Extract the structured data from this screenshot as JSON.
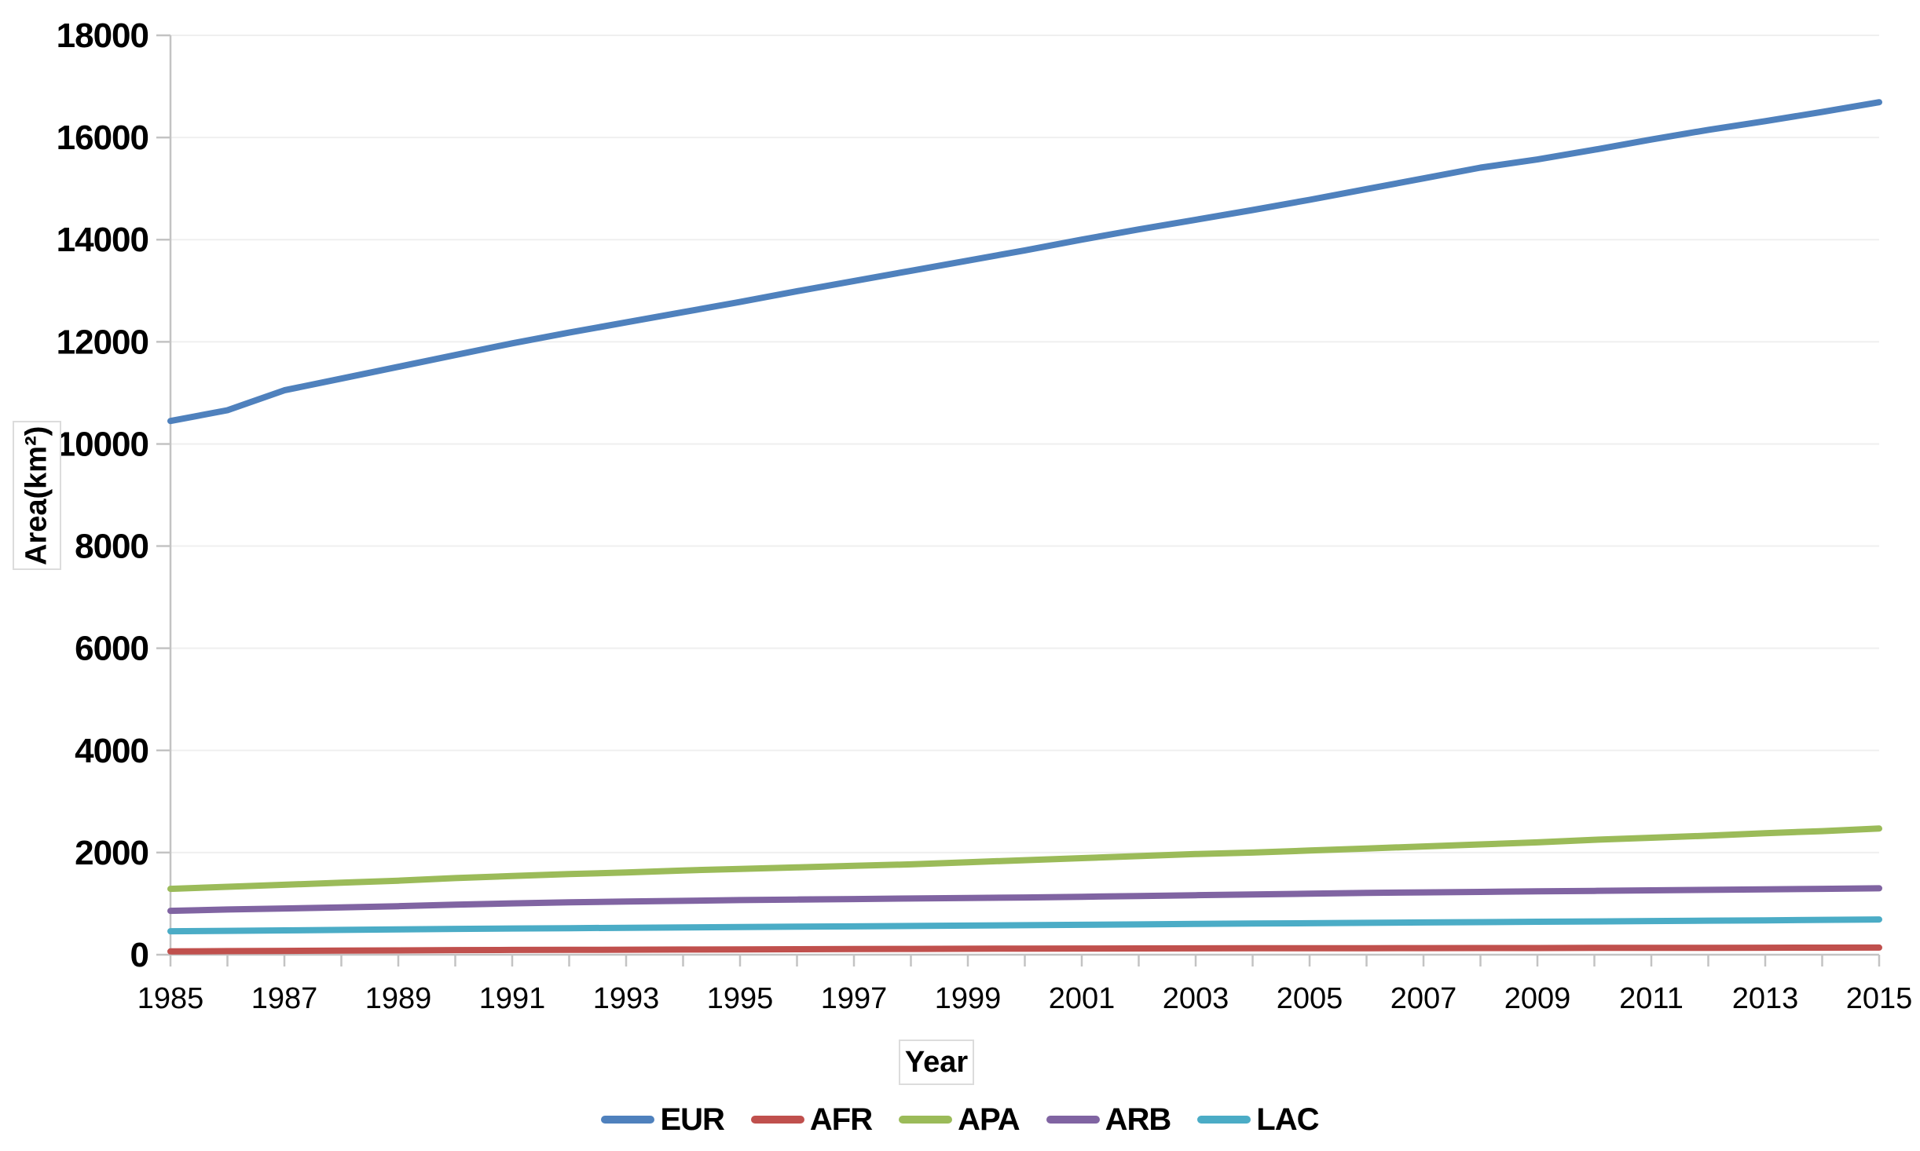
{
  "chart_data": {
    "type": "line",
    "title": "",
    "xlabel": "Year",
    "ylabel": "Area(km²)",
    "xlim": [
      1985,
      2015
    ],
    "ylim": [
      0,
      18000
    ],
    "y_tick_interval": 2000,
    "y_ticks": [
      0,
      2000,
      4000,
      6000,
      8000,
      10000,
      12000,
      14000,
      16000,
      18000
    ],
    "x_tick_interval_labels": 2,
    "x_tick_labels": [
      1985,
      1987,
      1989,
      1991,
      1993,
      1995,
      1997,
      1999,
      2001,
      2003,
      2005,
      2007,
      2009,
      2011,
      2013,
      2015
    ],
    "x": [
      1985,
      1986,
      1987,
      1988,
      1989,
      1990,
      1991,
      1992,
      1993,
      1994,
      1995,
      1996,
      1997,
      1998,
      1999,
      2000,
      2001,
      2002,
      2003,
      2004,
      2005,
      2006,
      2007,
      2008,
      2009,
      2010,
      2011,
      2012,
      2013,
      2014,
      2015
    ],
    "grid": true,
    "legend_position": "bottom",
    "colors": {
      "axis": "#c3c3c3",
      "grid": "#efefef",
      "tick": "#c3c3c3",
      "text": "#000000",
      "box_border": "#dcdcdc"
    },
    "series": [
      {
        "name": "EUR",
        "color": "#4F81BD",
        "values": [
          10450,
          10660,
          11050,
          11280,
          11510,
          11740,
          11970,
          12180,
          12380,
          12580,
          12780,
          12990,
          13190,
          13390,
          13590,
          13790,
          14000,
          14200,
          14390,
          14580,
          14780,
          14990,
          15200,
          15410,
          15570,
          15760,
          15960,
          16150,
          16320,
          16500,
          16690
        ]
      },
      {
        "name": "AFR",
        "color": "#C0504D",
        "values": [
          65,
          70,
          75,
          80,
          85,
          90,
          93,
          96,
          99,
          102,
          105,
          108,
          111,
          114,
          117,
          120,
          122,
          123,
          124,
          126,
          127,
          128,
          129,
          130,
          131,
          133,
          134,
          135,
          137,
          138,
          140
        ]
      },
      {
        "name": "APA",
        "color": "#9BBB59",
        "values": [
          1290,
          1330,
          1370,
          1410,
          1450,
          1500,
          1540,
          1580,
          1610,
          1650,
          1680,
          1710,
          1740,
          1770,
          1810,
          1850,
          1890,
          1930,
          1970,
          2000,
          2040,
          2080,
          2120,
          2160,
          2200,
          2250,
          2290,
          2330,
          2380,
          2420,
          2470
        ]
      },
      {
        "name": "ARB",
        "color": "#8064A2",
        "values": [
          860,
          885,
          905,
          925,
          950,
          980,
          1005,
          1025,
          1040,
          1055,
          1070,
          1080,
          1090,
          1100,
          1110,
          1120,
          1135,
          1150,
          1165,
          1180,
          1195,
          1210,
          1220,
          1230,
          1240,
          1250,
          1260,
          1270,
          1280,
          1290,
          1300
        ]
      },
      {
        "name": "LAC",
        "color": "#4BACC6",
        "values": [
          460,
          468,
          476,
          485,
          495,
          505,
          513,
          520,
          527,
          534,
          541,
          548,
          555,
          562,
          570,
          578,
          586,
          594,
          602,
          610,
          617,
          624,
          631,
          638,
          645,
          652,
          660,
          667,
          674,
          682,
          690
        ]
      }
    ]
  }
}
